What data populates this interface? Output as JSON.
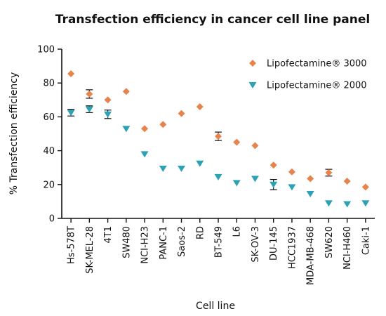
{
  "chart_data": {
    "type": "scatter",
    "title": "Transfection efficiency in cancer cell line panel",
    "xlabel": "Cell line",
    "ylabel": "% Transfection efficiency",
    "ylim": [
      0,
      100
    ],
    "yticks": [
      0,
      20,
      40,
      60,
      80,
      100
    ],
    "categories": [
      "Hs-578T",
      "SK-MEL-28",
      "4T1",
      "SW480",
      "NCI-H23",
      "PANC-1",
      "Saos-2",
      "RD",
      "BT-549",
      "L6",
      "SK-OV-3",
      "DU-145",
      "HCC1937",
      "MDA-MB-468",
      "SW620",
      "NCI-H460",
      "Caki-1"
    ],
    "legend_position": "top-right",
    "grid": false,
    "series": [
      {
        "name": "Lipofectamine® 3000",
        "marker": "diamond",
        "color": "#e8834e",
        "values": [
          85.5,
          73.5,
          70,
          75,
          53,
          55.5,
          62,
          66,
          48.5,
          45,
          43,
          31.5,
          27.5,
          23.5,
          27,
          22,
          18.5
        ],
        "errors": [
          0,
          2.5,
          0,
          0,
          0,
          0,
          0,
          0,
          2.5,
          0,
          0,
          0,
          0,
          0,
          2,
          0,
          0
        ]
      },
      {
        "name": "Lipofectamine® 2000",
        "marker": "triangle-down",
        "color": "#2ea2b5",
        "values": [
          62.5,
          64.5,
          61.5,
          53,
          38,
          29.5,
          29.5,
          32.5,
          24.5,
          21,
          23.5,
          20,
          18.5,
          14.5,
          9,
          8.5,
          9
        ],
        "errors": [
          2,
          2,
          2.5,
          0,
          0,
          0,
          0,
          0,
          0,
          0,
          0,
          3,
          0,
          0,
          0,
          0,
          0
        ]
      }
    ]
  }
}
